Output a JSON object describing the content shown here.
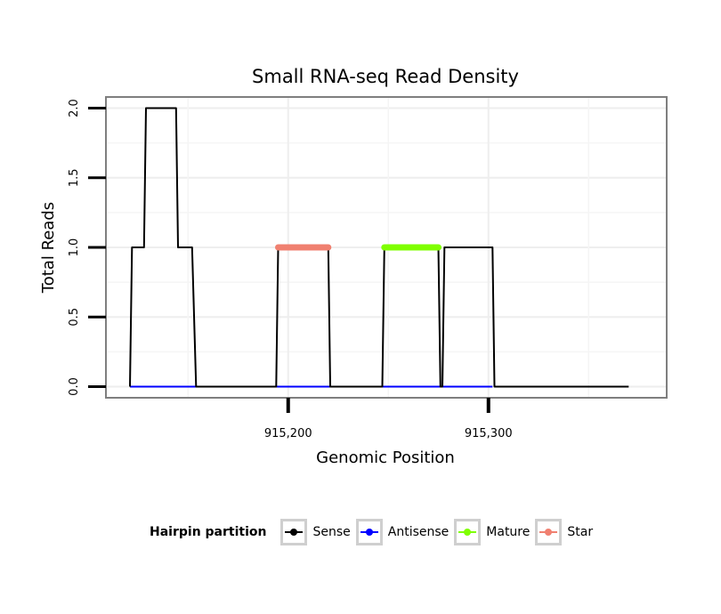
{
  "chart_data": {
    "type": "line",
    "title": "Small RNA-seq Read Density",
    "xlabel": "Genomic Position",
    "ylabel": "Total Reads",
    "xlim": [
      915109,
      915389
    ],
    "ylim": [
      -0.08,
      2.08
    ],
    "xticks": [
      915200,
      915300
    ],
    "xtick_labels": [
      "915,200",
      "915,300"
    ],
    "yticks": [
      0,
      0.5,
      1,
      1.5,
      2
    ],
    "ytick_labels": [
      "0.0",
      "0.5",
      "1.0",
      "1.5",
      "2.0"
    ],
    "grid": true,
    "legend_position": "bottom",
    "series": [
      {
        "name": "Sense",
        "color": "#000000",
        "points": [
          [
            915121,
            0
          ],
          [
            915122,
            1
          ],
          [
            915128,
            1
          ],
          [
            915129,
            2
          ],
          [
            915144,
            2
          ],
          [
            915145,
            1
          ],
          [
            915152,
            1
          ],
          [
            915154,
            0
          ],
          [
            915194,
            0
          ],
          [
            915195,
            1
          ],
          [
            915220,
            1
          ],
          [
            915221,
            0
          ],
          [
            915247,
            0
          ],
          [
            915248,
            1
          ],
          [
            915275,
            1
          ],
          [
            915276,
            0
          ],
          [
            915277,
            0
          ],
          [
            915278,
            1
          ],
          [
            915302,
            1
          ],
          [
            915303,
            0
          ],
          [
            915370,
            0
          ]
        ]
      },
      {
        "name": "Antisense",
        "color": "#0000ff",
        "points": [
          [
            915121,
            0
          ],
          [
            915302,
            0
          ]
        ]
      },
      {
        "name": "Mature",
        "color": "#7fff00",
        "points": [
          [
            915248,
            1
          ],
          [
            915275,
            1
          ]
        ]
      },
      {
        "name": "Star",
        "color": "#f08070",
        "points": [
          [
            915195,
            1
          ],
          [
            915220,
            1
          ]
        ]
      }
    ]
  },
  "legend": {
    "title": "Hairpin partition",
    "items": [
      {
        "label": "Sense",
        "color": "#000000"
      },
      {
        "label": "Antisense",
        "color": "#0000ff"
      },
      {
        "label": "Mature",
        "color": "#7fff00"
      },
      {
        "label": "Star",
        "color": "#f08070"
      }
    ]
  }
}
